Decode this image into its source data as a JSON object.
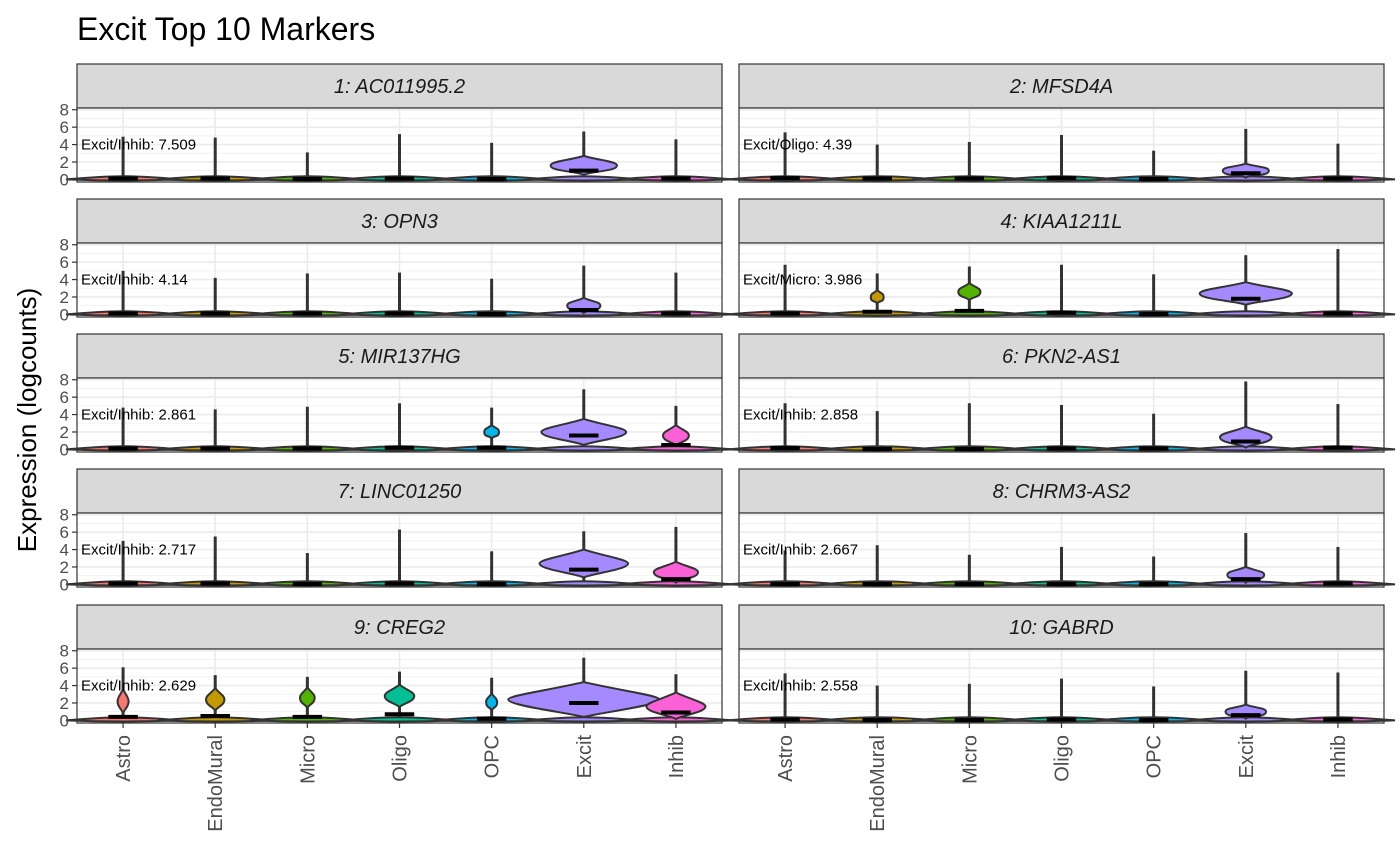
{
  "chart_data": {
    "type": "violin",
    "title": "Excit Top 10 Markers",
    "ylabel": "Expression (logcounts)",
    "xlabel": "",
    "ylim": [
      -0.3,
      8.2
    ],
    "y_ticks": [
      0,
      2,
      4,
      6,
      8
    ],
    "grid": true,
    "layout": {
      "rows": 5,
      "cols": 2
    },
    "categories": [
      "Astro",
      "EndoMural",
      "Micro",
      "Oligo",
      "OPC",
      "Excit",
      "Inhib"
    ],
    "colors": {
      "Astro": "#F8766D",
      "EndoMural": "#C49A00",
      "Micro": "#53B400",
      "Oligo": "#00C094",
      "OPC": "#00B6EB",
      "Excit": "#A58AFF",
      "Inhib": "#FB61D7"
    },
    "panels": [
      {
        "strip": "1: AC011995.2",
        "annotation": "Excit/Inhib: 7.509",
        "max": [
          4.9,
          4.8,
          3.1,
          5.2,
          4.2,
          5.5,
          4.6
        ],
        "median": [
          0.1,
          0.1,
          0.05,
          0.1,
          0.05,
          1.0,
          0.1
        ],
        "bulge": [
          null,
          null,
          null,
          null,
          null,
          {
            "c": 1.6,
            "h": 1.1,
            "w": 0.36
          },
          null
        ]
      },
      {
        "strip": "2: MFSD4A",
        "annotation": "Excit/Oligo: 4.39",
        "max": [
          5.4,
          4.0,
          4.3,
          5.1,
          3.3,
          5.8,
          4.1
        ],
        "median": [
          0.15,
          0.1,
          0.1,
          0.15,
          0.05,
          0.7,
          0.1
        ],
        "bulge": [
          null,
          null,
          null,
          null,
          null,
          {
            "c": 1.0,
            "h": 0.8,
            "w": 0.25
          },
          null
        ]
      },
      {
        "strip": "3: OPN3",
        "annotation": "Excit/Inhib: 4.14",
        "max": [
          5.0,
          4.2,
          4.7,
          4.8,
          4.1,
          5.6,
          4.8
        ],
        "median": [
          0.1,
          0.1,
          0.1,
          0.1,
          0.05,
          0.5,
          0.1
        ],
        "bulge": [
          null,
          null,
          null,
          null,
          null,
          {
            "c": 1.0,
            "h": 0.9,
            "w": 0.18
          },
          null
        ]
      },
      {
        "strip": "4: KIAA1211L",
        "annotation": "Excit/Micro: 3.986",
        "max": [
          5.7,
          4.7,
          5.5,
          5.7,
          4.6,
          6.8,
          7.5
        ],
        "median": [
          0.1,
          0.3,
          0.4,
          0.2,
          0.05,
          1.8,
          0.1
        ],
        "bulge": [
          null,
          {
            "c": 2.0,
            "h": 0.8,
            "w": 0.07
          },
          {
            "c": 2.6,
            "h": 1.0,
            "w": 0.12
          },
          null,
          null,
          {
            "c": 2.4,
            "h": 1.3,
            "w": 0.5
          },
          null
        ]
      },
      {
        "strip": "5: MIR137HG",
        "annotation": "Excit/Inhib: 2.861",
        "max": [
          4.8,
          4.6,
          4.9,
          5.3,
          4.8,
          6.9,
          5.0
        ],
        "median": [
          0.1,
          0.1,
          0.1,
          0.2,
          0.2,
          1.6,
          0.5
        ],
        "bulge": [
          null,
          null,
          null,
          null,
          {
            "c": 2.0,
            "h": 0.8,
            "w": 0.08
          },
          {
            "c": 2.0,
            "h": 1.5,
            "w": 0.46
          },
          {
            "c": 1.6,
            "h": 1.2,
            "w": 0.14
          }
        ]
      },
      {
        "strip": "6: PKN2-AS1",
        "annotation": "Excit/Inhib: 2.858",
        "max": [
          5.3,
          4.4,
          5.3,
          5.1,
          4.1,
          7.8,
          5.2
        ],
        "median": [
          0.15,
          0.05,
          0.05,
          0.1,
          0.1,
          0.9,
          0.2
        ],
        "bulge": [
          null,
          null,
          null,
          null,
          null,
          {
            "c": 1.4,
            "h": 1.2,
            "w": 0.28
          },
          null
        ]
      },
      {
        "strip": "7: LINC01250",
        "annotation": "Excit/Inhib: 2.717",
        "max": [
          5.0,
          5.5,
          3.6,
          6.3,
          3.8,
          6.1,
          6.6
        ],
        "median": [
          0.1,
          0.1,
          0.05,
          0.1,
          0.05,
          1.7,
          0.6
        ],
        "bulge": [
          null,
          null,
          null,
          null,
          null,
          {
            "c": 2.4,
            "h": 1.6,
            "w": 0.48
          },
          {
            "c": 1.4,
            "h": 1.2,
            "w": 0.24
          }
        ]
      },
      {
        "strip": "8: CHRM3-AS2",
        "annotation": "Excit/Inhib: 2.667",
        "max": [
          3.9,
          4.5,
          3.4,
          4.3,
          3.2,
          5.9,
          4.3
        ],
        "median": [
          0.05,
          0.05,
          0.05,
          0.05,
          0.05,
          0.6,
          0.1
        ],
        "bulge": [
          null,
          null,
          null,
          null,
          null,
          {
            "c": 1.1,
            "h": 0.9,
            "w": 0.2
          },
          null
        ]
      },
      {
        "strip": "9: CREG2",
        "annotation": "Excit/Inhib: 2.629",
        "max": [
          6.1,
          5.2,
          5.0,
          5.6,
          4.9,
          7.2,
          5.3
        ],
        "median": [
          0.4,
          0.5,
          0.4,
          0.7,
          0.2,
          2.0,
          0.9
        ],
        "bulge": [
          {
            "c": 2.2,
            "h": 1.4,
            "w": 0.06
          },
          {
            "c": 2.4,
            "h": 1.3,
            "w": 0.1
          },
          {
            "c": 2.6,
            "h": 1.2,
            "w": 0.08
          },
          {
            "c": 2.8,
            "h": 1.3,
            "w": 0.16
          },
          {
            "c": 2.1,
            "h": 1.0,
            "w": 0.06
          },
          {
            "c": 2.4,
            "h": 2.0,
            "w": 0.82
          },
          {
            "c": 1.6,
            "h": 1.6,
            "w": 0.32
          }
        ]
      },
      {
        "strip": "10: GABRD",
        "annotation": "Excit/Inhib: 2.558",
        "max": [
          5.4,
          4.0,
          4.2,
          4.8,
          3.9,
          5.7,
          5.5
        ],
        "median": [
          0.1,
          0.05,
          0.05,
          0.1,
          0.05,
          0.6,
          0.1
        ],
        "bulge": [
          null,
          null,
          null,
          null,
          null,
          {
            "c": 1.0,
            "h": 0.8,
            "w": 0.22
          },
          null
        ]
      }
    ]
  }
}
